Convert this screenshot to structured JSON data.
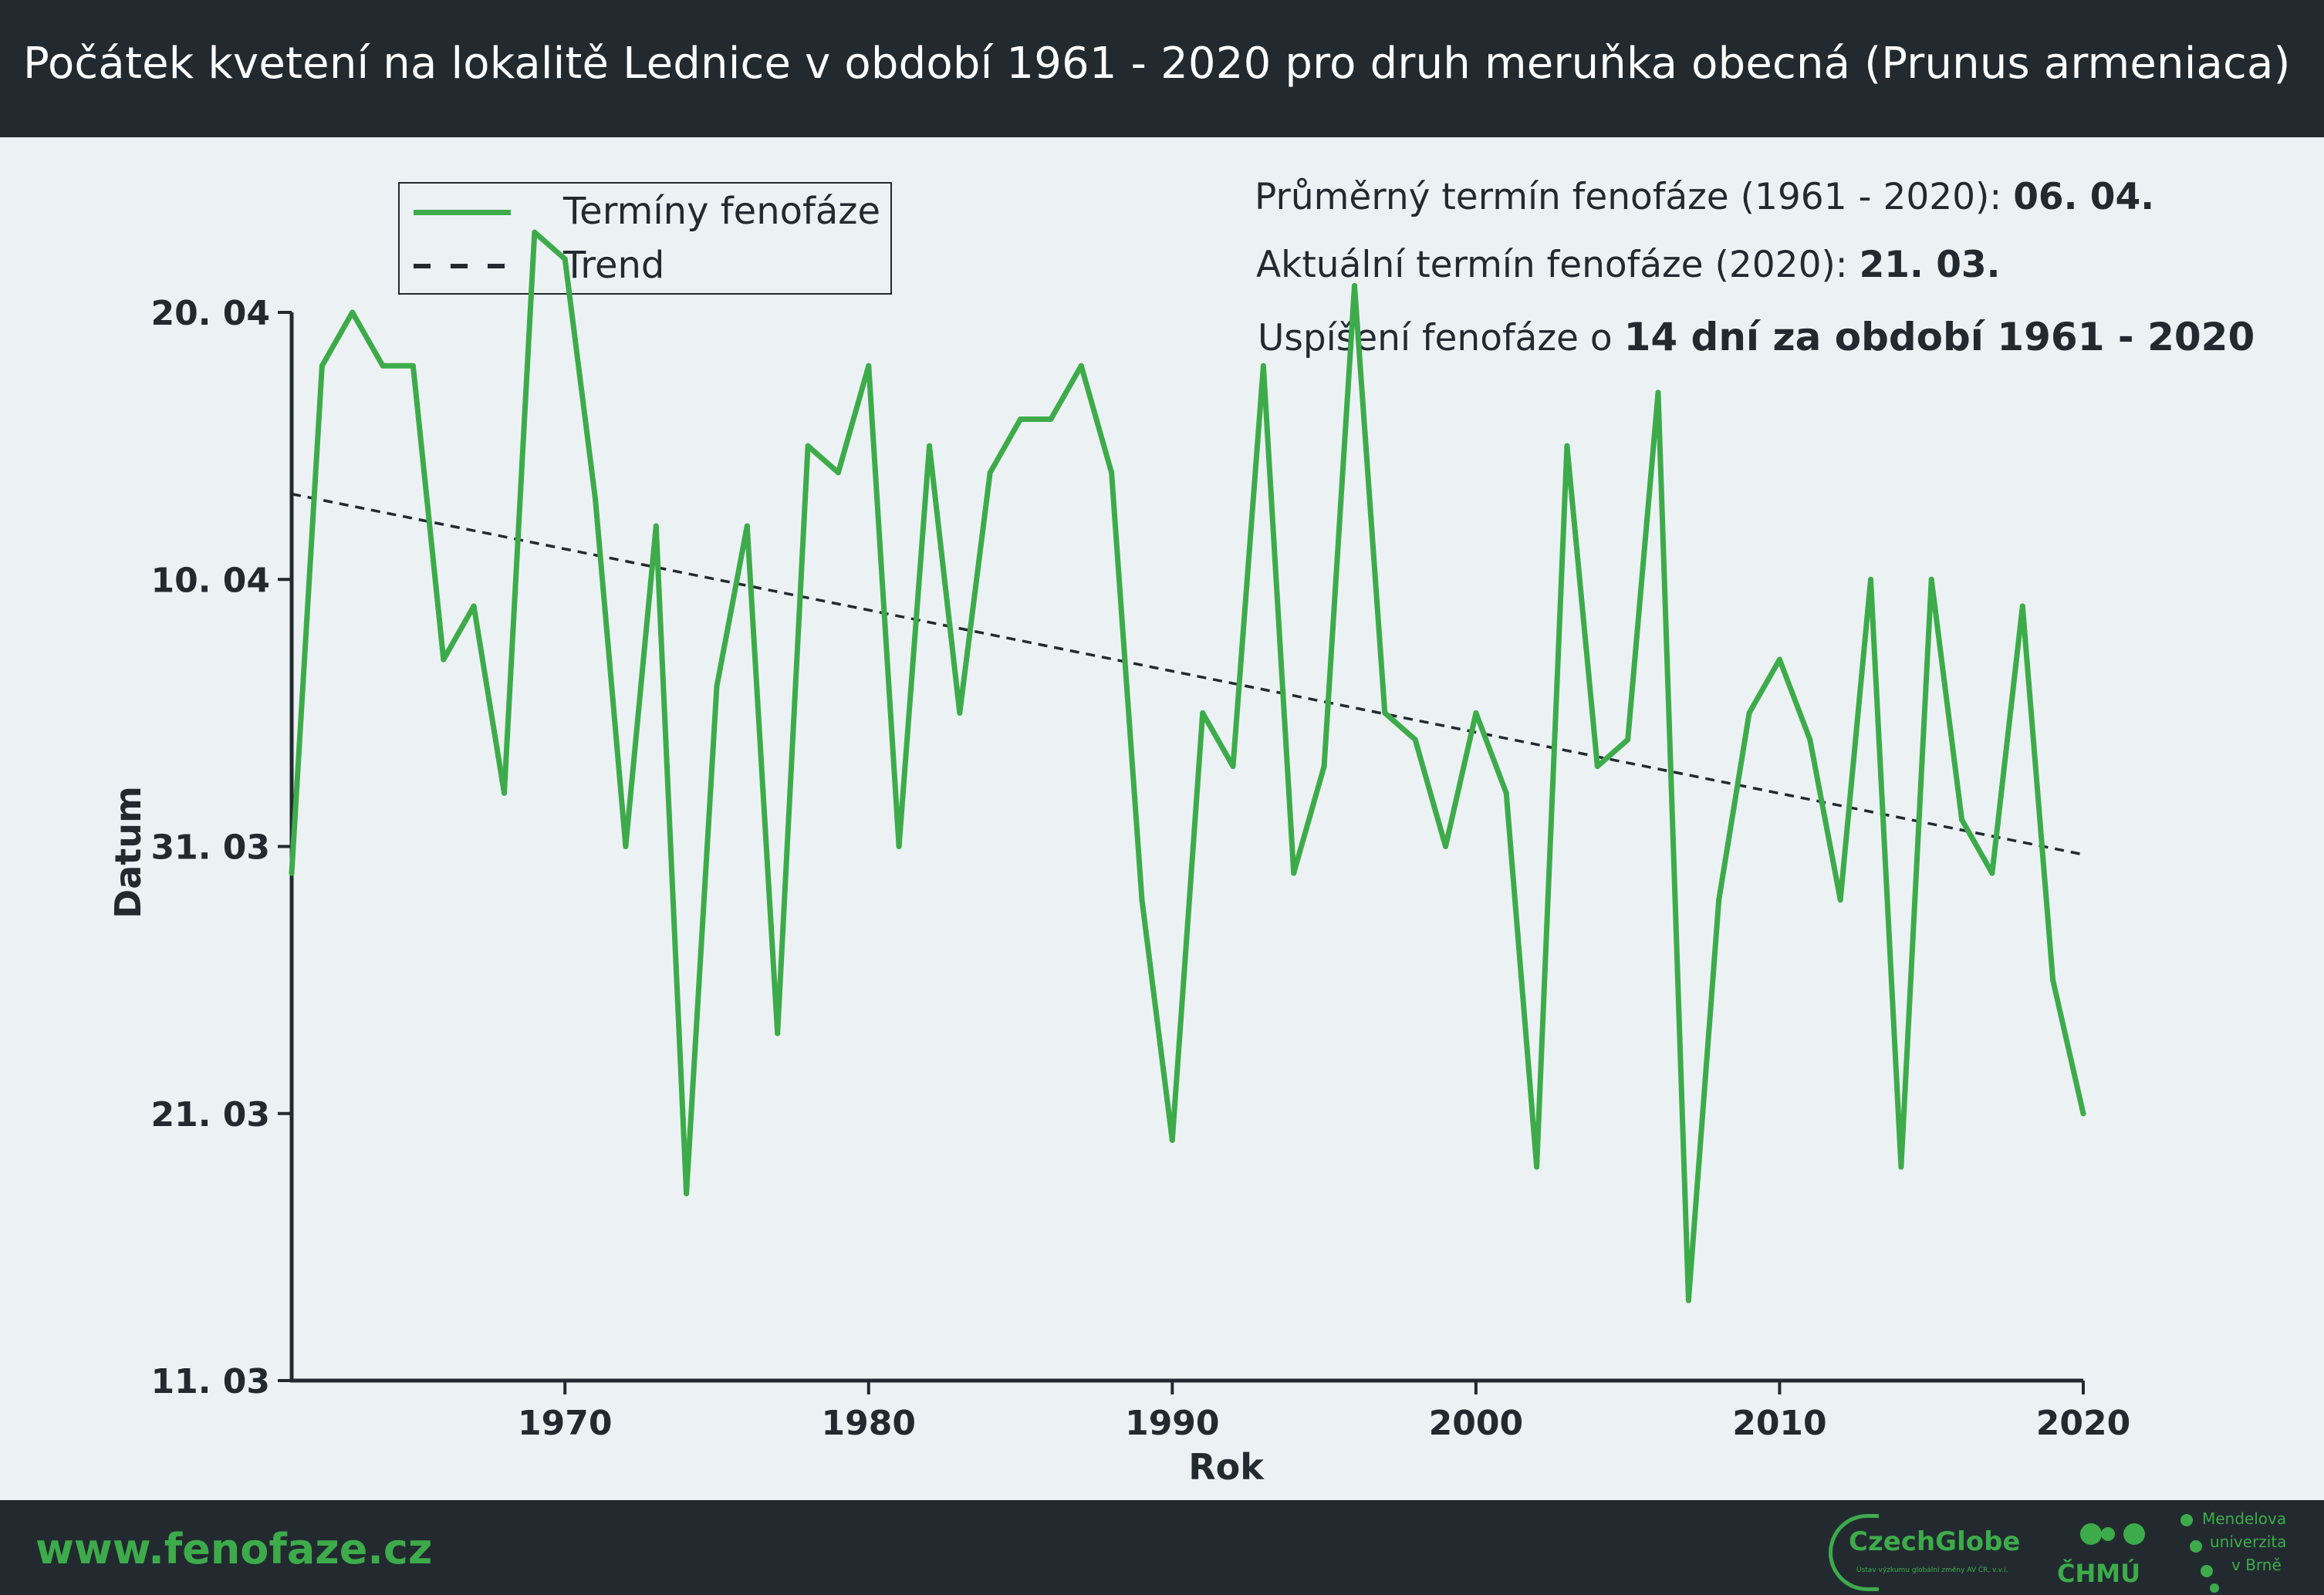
{
  "header": {
    "title": "Počátek kvetení na lokalitě Lednice v období 1961 - 2020 pro druh meruňka obecná (Prunus armeniaca)"
  },
  "legend": {
    "series_label": "Termíny fenofáze",
    "trend_label": "Trend"
  },
  "info": {
    "avg_label": "Průměrný termín fenofáze (1961 - 2020):",
    "avg_value": "06. 04.",
    "current_label": "Aktuální termín fenofáze (2020):",
    "current_value": "21. 03.",
    "shift_label": "Uspíšení fenofáze o",
    "shift_value": "14 dní za období 1961 - 2020"
  },
  "footer": {
    "site": "www.fenofaze.cz",
    "logos": {
      "czechglobe": "CzechGlobe",
      "czechglobe_sub": "Ústav výzkumu globální změny AV ČR, v.v.i.",
      "chmu": "ČHMÚ",
      "mendelu_1": "Mendelova",
      "mendelu_2": "univerzita",
      "mendelu_3": "v Brně"
    }
  },
  "colors": {
    "series": "#3dab4a",
    "trend": "#222a30",
    "axis": "#222a30",
    "background": "#ecf2f4",
    "header": "#222a30"
  },
  "chart_data": {
    "type": "line",
    "xlabel": "Rok",
    "ylabel": "Datum",
    "xlim": [
      1961,
      2020
    ],
    "ylim": [
      70,
      110
    ],
    "y_unit": "day of year",
    "xticks": [
      1970,
      1980,
      1990,
      2000,
      2010,
      2020
    ],
    "yticks": [
      {
        "value": 70,
        "label": "11. 03"
      },
      {
        "value": 80,
        "label": "21. 03"
      },
      {
        "value": 90,
        "label": "31. 03"
      },
      {
        "value": 100,
        "label": "10. 04"
      },
      {
        "value": 110,
        "label": "20. 04"
      }
    ],
    "x": [
      1961,
      1962,
      1963,
      1964,
      1965,
      1966,
      1967,
      1968,
      1969,
      1970,
      1971,
      1972,
      1973,
      1974,
      1975,
      1976,
      1977,
      1978,
      1979,
      1980,
      1981,
      1982,
      1983,
      1984,
      1985,
      1986,
      1987,
      1988,
      1989,
      1990,
      1991,
      1992,
      1993,
      1994,
      1995,
      1996,
      1997,
      1998,
      1999,
      2000,
      2001,
      2002,
      2003,
      2004,
      2005,
      2006,
      2007,
      2008,
      2009,
      2010,
      2011,
      2012,
      2013,
      2014,
      2015,
      2016,
      2017,
      2018,
      2019,
      2020
    ],
    "series": [
      {
        "name": "Termíny fenofáze",
        "style": "solid",
        "values": [
          89,
          108,
          110,
          108,
          108,
          97,
          99,
          92,
          113,
          112,
          103,
          90,
          102,
          77,
          96,
          102,
          83,
          105,
          104,
          108,
          90,
          105,
          95,
          104,
          106,
          106,
          108,
          104,
          88,
          79,
          95,
          93,
          108,
          89,
          93,
          111,
          95,
          94,
          90,
          95,
          92,
          78,
          105,
          93,
          94,
          107,
          73,
          88,
          95,
          97,
          94,
          88,
          100,
          78,
          100,
          91,
          89,
          99,
          85,
          80
        ]
      },
      {
        "name": "Trend",
        "style": "dashed",
        "x": [
          1961,
          2020
        ],
        "values": [
          103.2,
          89.7
        ]
      }
    ],
    "grid": false,
    "legend_position": "top-left"
  }
}
